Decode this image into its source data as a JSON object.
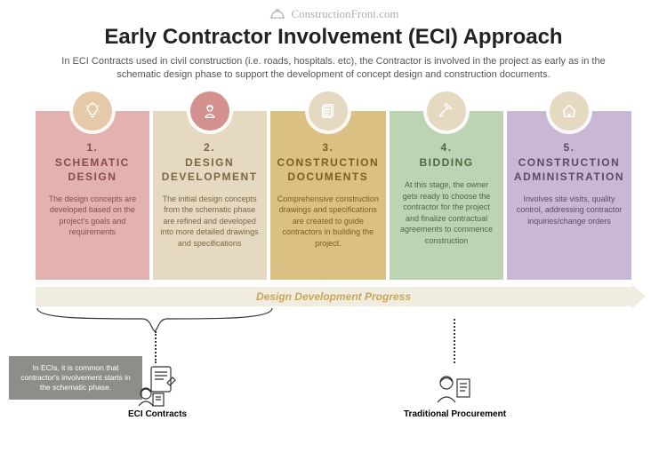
{
  "site_name": "ConstructionFront.com",
  "title": "Early Contractor Involvement (ECI) Approach",
  "subtitle": "In ECI Contracts used in civil construction (i.e. roads, hospitals. etc), the Contractor is involved in the project as early as in the schematic design phase to support the development of concept design and construction documents.",
  "progress_label": "Design Development Progress",
  "note_text": "In ECIs, it is common that contractor's involvement starts in the schematic phase.",
  "eci_label": "ECI Contracts",
  "trad_label": "Traditional Procurement",
  "colors": {
    "background": "#ffffff",
    "arrow_bg": "#f1ece0",
    "arrow_text": "#c9a55a",
    "note_bg": "#8e8e88",
    "note_text": "#ffffff"
  },
  "stages": [
    {
      "num": "1.",
      "title": "SCHEMATIC DESIGN",
      "desc": "The design concepts are developed based on the project's goals and requirements",
      "card_bg": "#e4b1b1",
      "icon_bg": "#e6c9a8",
      "text_color": "#8a4a4a",
      "icon": "lightbulb"
    },
    {
      "num": "2.",
      "title": "DESIGN DEVELOPMENT",
      "desc": "The initial design concepts from the schematic phase are refined and developed into more detailed drawings and specifications",
      "card_bg": "#e6d9c2",
      "icon_bg": "#d48f8f",
      "text_color": "#7a6640",
      "icon": "worker"
    },
    {
      "num": "3.",
      "title": "CONSTRUCTION DOCUMENTS",
      "desc": "Comprehensive construction drawings and specifications are created to guide contractors in building the project.",
      "card_bg": "#dbc083",
      "icon_bg": "#e6d9c2",
      "text_color": "#7a5f20",
      "icon": "documents"
    },
    {
      "num": "4.",
      "title": "BIDDING",
      "desc": "At this stage, the owner gets ready to choose the contractor for the project and finalize contractual agreements to commence construction",
      "card_bg": "#bcd4b4",
      "icon_bg": "#e6d9c2",
      "text_color": "#4a6a40",
      "icon": "gavel"
    },
    {
      "num": "5.",
      "title": "CONSTRUCTION ADMINISTRATION",
      "desc": "Involves site visits, quality control, addressing contractor inquiries/change orders",
      "card_bg": "#c9b8d4",
      "icon_bg": "#e6d9c2",
      "text_color": "#5a4a6a",
      "icon": "house-tools"
    }
  ]
}
